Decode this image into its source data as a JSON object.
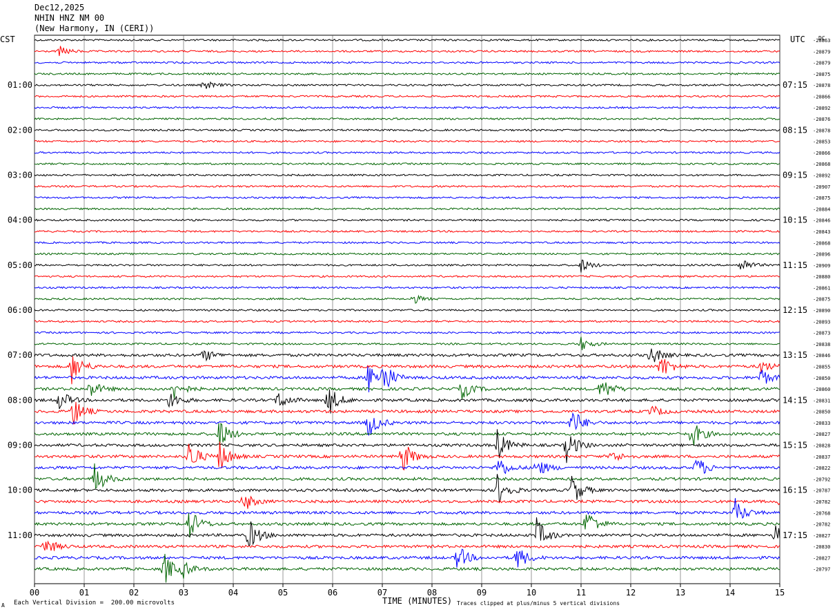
{
  "header": {
    "date": "Dec12,2025",
    "station": "NHIN HNZ NM 00",
    "location": "(New Harmony, IN (CERI))"
  },
  "left_axis_title": "CST",
  "right_axis_title": "UTC",
  "dc_label": "DC",
  "footer": {
    "scale_note": "Each Vertical Division =  200.00 microvolts",
    "x_axis_title": "TIME (MINUTES)",
    "clip_note": "Traces clipped at plus/minus 5 vertical divisions",
    "corner_mark": "A"
  },
  "chart_data": {
    "type": "line",
    "title": "NHIN HNZ NM 00",
    "xlabel": "TIME (MINUTES)",
    "ylabel": "",
    "xlim": [
      0,
      15
    ],
    "x_ticks": [
      "00",
      "01",
      "02",
      "03",
      "04",
      "05",
      "06",
      "07",
      "08",
      "09",
      "10",
      "11",
      "12",
      "13",
      "14",
      "15"
    ],
    "trace_colors": [
      "#000000",
      "#ff0000",
      "#0000ff",
      "#006400"
    ],
    "row_minutes": 15,
    "left_time_labels": [
      "01:00",
      "02:00",
      "03:00",
      "04:00",
      "05:00",
      "06:00",
      "07:00",
      "08:00",
      "09:00",
      "10:00",
      "11:00"
    ],
    "right_time_labels": [
      "07:15",
      "08:15",
      "09:15",
      "10:15",
      "11:15",
      "12:15",
      "13:15",
      "14:15",
      "15:15",
      "16:15",
      "17:15"
    ],
    "dc_offsets": [
      "-20863",
      "-20879",
      "-20879",
      "-20875",
      "-20878",
      "-20866",
      "-20892",
      "-20876",
      "-20878",
      "-20853",
      "-20866",
      "-20868",
      "-20892",
      "-20907",
      "-20875",
      "-20884",
      "-20846",
      "-20843",
      "-20868",
      "-20896",
      "-20909",
      "-20880",
      "-20861",
      "-20875",
      "-20890",
      "-20893",
      "-20873",
      "-20838",
      "-20846",
      "-20855",
      "-20850",
      "-20860",
      "-20831",
      "-20850",
      "-20833",
      "-20827",
      "-20828",
      "-20837",
      "-20822",
      "-20792",
      "-20787",
      "-20782",
      "-20768",
      "-20782",
      "-20827",
      "-20830",
      "-20827",
      "-20797"
    ],
    "events": [
      {
        "row": 1,
        "minute": 0.5,
        "amp": 1.5
      },
      {
        "row": 4,
        "minute": 3.4,
        "amp": 1.5
      },
      {
        "row": 20,
        "minute": 11.0,
        "amp": 2
      },
      {
        "row": 20,
        "minute": 14.2,
        "amp": 2.5
      },
      {
        "row": 23,
        "minute": 7.6,
        "amp": 1.5
      },
      {
        "row": 27,
        "minute": 11.0,
        "amp": 2
      },
      {
        "row": 28,
        "minute": 3.4,
        "amp": 2
      },
      {
        "row": 28,
        "minute": 12.4,
        "amp": 3
      },
      {
        "row": 29,
        "minute": 0.75,
        "amp": 5
      },
      {
        "row": 29,
        "minute": 12.6,
        "amp": 4
      },
      {
        "row": 29,
        "minute": 14.6,
        "amp": 2
      },
      {
        "row": 30,
        "minute": 6.7,
        "amp": 5
      },
      {
        "row": 30,
        "minute": 7.0,
        "amp": 5
      },
      {
        "row": 30,
        "minute": 14.6,
        "amp": 3
      },
      {
        "row": 31,
        "minute": 1.1,
        "amp": 3
      },
      {
        "row": 31,
        "minute": 2.8,
        "amp": 3
      },
      {
        "row": 31,
        "minute": 8.6,
        "amp": 3
      },
      {
        "row": 31,
        "minute": 11.4,
        "amp": 4
      },
      {
        "row": 32,
        "minute": 0.5,
        "amp": 3
      },
      {
        "row": 32,
        "minute": 2.7,
        "amp": 3
      },
      {
        "row": 32,
        "minute": 4.9,
        "amp": 3
      },
      {
        "row": 32,
        "minute": 5.9,
        "amp": 5
      },
      {
        "row": 33,
        "minute": 0.75,
        "amp": 5
      },
      {
        "row": 33,
        "minute": 12.4,
        "amp": 2
      },
      {
        "row": 34,
        "minute": 6.7,
        "amp": 5
      },
      {
        "row": 34,
        "minute": 10.8,
        "amp": 5
      },
      {
        "row": 35,
        "minute": 3.7,
        "amp": 5
      },
      {
        "row": 35,
        "minute": 13.2,
        "amp": 5
      },
      {
        "row": 36,
        "minute": 9.3,
        "amp": 5
      },
      {
        "row": 36,
        "minute": 10.7,
        "amp": 5
      },
      {
        "row": 37,
        "minute": 3.1,
        "amp": 5
      },
      {
        "row": 37,
        "minute": 3.7,
        "amp": 5
      },
      {
        "row": 37,
        "minute": 7.4,
        "amp": 5
      },
      {
        "row": 37,
        "minute": 11.6,
        "amp": 2
      },
      {
        "row": 38,
        "minute": 9.3,
        "amp": 4
      },
      {
        "row": 38,
        "minute": 10.1,
        "amp": 3
      },
      {
        "row": 38,
        "minute": 13.3,
        "amp": 4
      },
      {
        "row": 39,
        "minute": 1.2,
        "amp": 5
      },
      {
        "row": 40,
        "minute": 9.3,
        "amp": 5
      },
      {
        "row": 40,
        "minute": 10.8,
        "amp": 5
      },
      {
        "row": 41,
        "minute": 4.2,
        "amp": 3
      },
      {
        "row": 41,
        "minute": 15.0,
        "amp": 2
      },
      {
        "row": 42,
        "minute": 14.1,
        "amp": 4
      },
      {
        "row": 43,
        "minute": 3.1,
        "amp": 5
      },
      {
        "row": 43,
        "minute": 11.1,
        "amp": 5
      },
      {
        "row": 44,
        "minute": 4.3,
        "amp": 5
      },
      {
        "row": 44,
        "minute": 10.1,
        "amp": 5
      },
      {
        "row": 44,
        "minute": 14.9,
        "amp": 3
      },
      {
        "row": 45,
        "minute": 0.2,
        "amp": 3
      },
      {
        "row": 46,
        "minute": 8.5,
        "amp": 4
      },
      {
        "row": 46,
        "minute": 9.7,
        "amp": 4
      },
      {
        "row": 47,
        "minute": 2.6,
        "amp": 5
      },
      {
        "row": 47,
        "minute": 3.0,
        "amp": 2
      }
    ]
  }
}
